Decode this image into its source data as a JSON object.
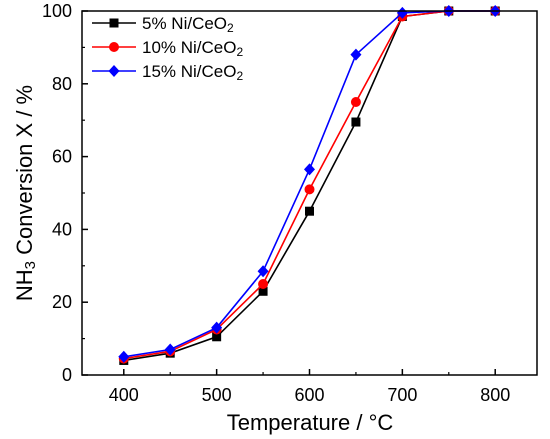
{
  "chart_data": {
    "type": "line",
    "xlabel": "Temperature / °C",
    "ylabel": "NH",
    "ylabel_sub": "3",
    "ylabel_rest": " Conversion X / %",
    "xlim": [
      355,
      845
    ],
    "ylim": [
      0,
      100
    ],
    "xticks": [
      400,
      500,
      600,
      700,
      800
    ],
    "yticks": [
      0,
      20,
      40,
      60,
      80,
      100
    ],
    "grid": false,
    "legend_position": "top-left",
    "x": [
      400,
      450,
      500,
      550,
      600,
      650,
      700,
      750,
      800
    ],
    "series": [
      {
        "name": "5% Ni/CeO",
        "name_sub": "2",
        "color": "#000000",
        "marker": "square",
        "values": [
          4,
          6,
          10.5,
          23,
          45,
          69.5,
          98.5,
          100,
          100
        ]
      },
      {
        "name": "10% Ni/CeO",
        "name_sub": "2",
        "color": "#ff0000",
        "marker": "circle",
        "values": [
          4.5,
          6.5,
          12.5,
          25,
          51,
          75,
          98.5,
          100,
          100
        ]
      },
      {
        "name": "15% Ni/CeO",
        "name_sub": "2",
        "color": "#0000ff",
        "marker": "diamond",
        "values": [
          5,
          7,
          13,
          28.5,
          56.5,
          88,
          99.5,
          100,
          100
        ]
      }
    ]
  }
}
